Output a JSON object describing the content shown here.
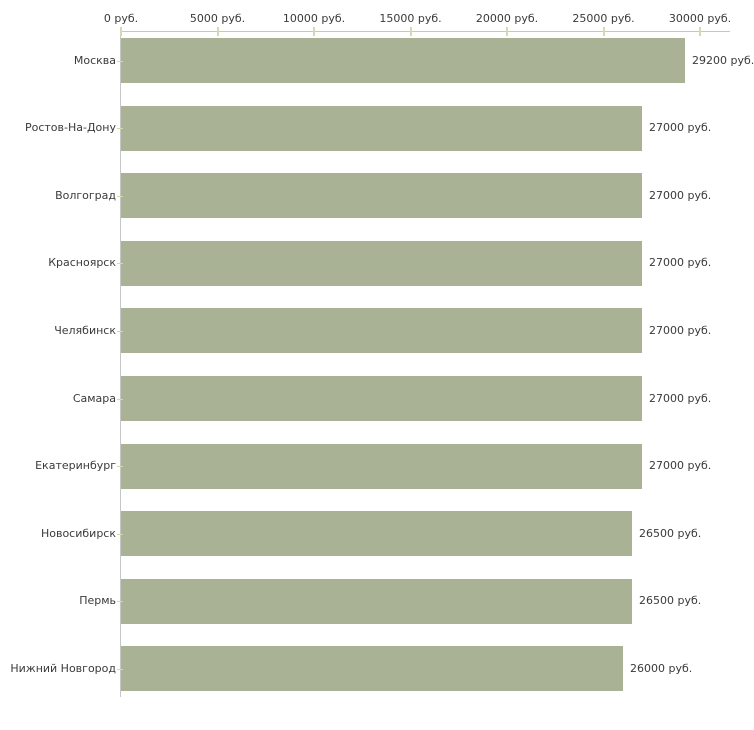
{
  "chart_data": {
    "type": "bar",
    "orientation": "horizontal",
    "title": "",
    "xlabel": "",
    "ylabel": "",
    "unit": "руб.",
    "xlim": [
      0,
      30000
    ],
    "grid": false,
    "legend": null,
    "x_ticks": [
      0,
      5000,
      10000,
      15000,
      20000,
      25000,
      30000
    ],
    "x_tick_labels": [
      "0 руб.",
      "5000 руб.",
      "10000 руб.",
      "15000 руб.",
      "20000 руб.",
      "25000 руб.",
      "30000 руб."
    ],
    "categories": [
      "Москва",
      "Ростов-На-Дону",
      "Волгоград",
      "Красноярск",
      "Челябинск",
      "Самара",
      "Екатеринбург",
      "Новосибирск",
      "Пермь",
      "Нижний Новгород"
    ],
    "values": [
      29200,
      27000,
      27000,
      27000,
      27000,
      27000,
      27000,
      26500,
      26500,
      26000
    ],
    "value_labels": [
      "29200 руб.",
      "27000 руб.",
      "27000 руб.",
      "27000 руб.",
      "27000 руб.",
      "27000 руб.",
      "27000 руб.",
      "26500 руб.",
      "26500 руб.",
      "26000 руб."
    ],
    "colors": {
      "bar": "#a9b294",
      "axis": "#c6c6c6",
      "tick": "#d6d9ad",
      "text": "#3a3a3a",
      "background": "#ffffff"
    }
  }
}
